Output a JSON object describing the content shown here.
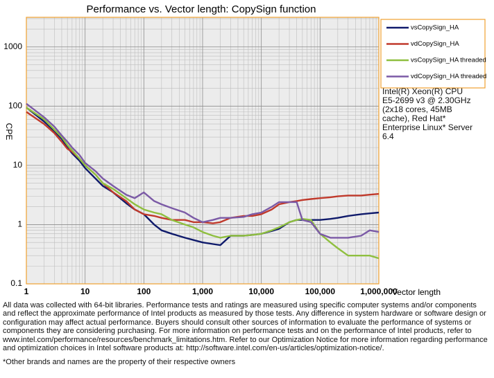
{
  "chart_data": {
    "type": "line",
    "title": "Performance vs. Vector length: CopySign function",
    "x_label": "Vector length",
    "y_label": "CPE",
    "log_x": true,
    "log_y": true,
    "grid": true,
    "legend": "top-right",
    "x": [
      1,
      2,
      3,
      4,
      5,
      6,
      8,
      10,
      15,
      20,
      30,
      50,
      70,
      100,
      150,
      200,
      300,
      500,
      700,
      1000,
      1500,
      2000,
      3000,
      5000,
      7000,
      10000,
      15000,
      20000,
      30000,
      40000,
      50000,
      70000,
      100000,
      150000,
      200000,
      300000,
      500000,
      700000,
      1000000
    ],
    "series": [
      {
        "name": "vsCopySign_HA",
        "color": "#0f1a6b",
        "values": [
          95,
          55,
          38,
          28,
          20,
          16,
          12,
          9,
          6,
          4.5,
          3.5,
          2.3,
          1.8,
          1.5,
          1.0,
          0.8,
          0.7,
          0.6,
          0.55,
          0.5,
          0.47,
          0.45,
          0.65,
          0.65,
          0.67,
          0.7,
          0.78,
          0.85,
          1.1,
          1.2,
          1.2,
          1.2,
          1.2,
          1.25,
          1.3,
          1.4,
          1.5,
          1.55,
          1.6
        ]
      },
      {
        "name": "vdCopySign_HA",
        "color": "#c0392b",
        "values": [
          80,
          50,
          35,
          25,
          19,
          17,
          13,
          10,
          7,
          5,
          3.5,
          2.5,
          1.8,
          1.5,
          1.4,
          1.3,
          1.2,
          1.2,
          1.1,
          1.1,
          1.05,
          1.1,
          1.3,
          1.4,
          1.4,
          1.5,
          1.8,
          2.2,
          2.4,
          2.5,
          2.6,
          2.7,
          2.8,
          2.9,
          3.0,
          3.1,
          3.1,
          3.2,
          3.3
        ]
      },
      {
        "name": "vsCopySign_HA threaded",
        "color": "#8fbf3f",
        "values": [
          95,
          60,
          40,
          30,
          22,
          18,
          13,
          10,
          7,
          5,
          4,
          2.8,
          2.2,
          1.8,
          1.6,
          1.5,
          1.2,
          1.0,
          0.9,
          0.75,
          0.65,
          0.6,
          0.65,
          0.65,
          0.67,
          0.7,
          0.8,
          0.9,
          1.1,
          1.2,
          1.25,
          1.2,
          0.7,
          0.5,
          0.4,
          0.3,
          0.3,
          0.3,
          0.27
        ]
      },
      {
        "name": "vdCopySign_HA threaded",
        "color": "#7b5aa6",
        "values": [
          110,
          65,
          45,
          32,
          25,
          20,
          15,
          11,
          8,
          6,
          4.5,
          3.2,
          2.8,
          3.5,
          2.5,
          2.2,
          1.9,
          1.6,
          1.3,
          1.1,
          1.2,
          1.3,
          1.3,
          1.35,
          1.5,
          1.6,
          2.0,
          2.4,
          2.4,
          2.4,
          1.2,
          1.1,
          0.7,
          0.6,
          0.6,
          0.6,
          0.65,
          0.8,
          0.75
        ]
      }
    ],
    "xlim": [
      1,
      1000000
    ],
    "ylim": [
      0.1,
      3162
    ],
    "xticks": [
      1,
      10,
      100,
      {
        "value": 1000,
        "label": "1,000"
      },
      {
        "value": 10000,
        "label": "10,000"
      },
      {
        "value": 100000,
        "label": "100,000"
      },
      {
        "value": 1000000,
        "label": "1,000,000"
      }
    ],
    "yticks": [
      0.1,
      1,
      10,
      100,
      1000
    ],
    "annotation": "Intel(R) Xeon(R) CPU E5-2699 v3 @ 2.30GHz (2x18 cores, 45MB cache), Red Hat* Enterprise Linux* Server 6.4",
    "footer": "All data was collected with 64-bit libraries. Performance tests and ratings are measured using specific computer systems and/or components and reflect the approximate performance of Intel products as measured by those tests. Any difference in system hardware or software design or configuration may affect actual performance. Buyers should consult other sources of information to evaluate the performance of systems or components they are considering purchasing. For more information on performance tests and on the performance of Intel products, refer to www.intel.com/performance/resources/benchmark_limitations.htm. Refer to our Optimization Notice for more information regarding performance and optimization choices in Intel software products at: http://software.intel.com/en-us/articles/optimization-notice/.",
    "footnote": "*Other brands and names are the property of their respective owners"
  }
}
